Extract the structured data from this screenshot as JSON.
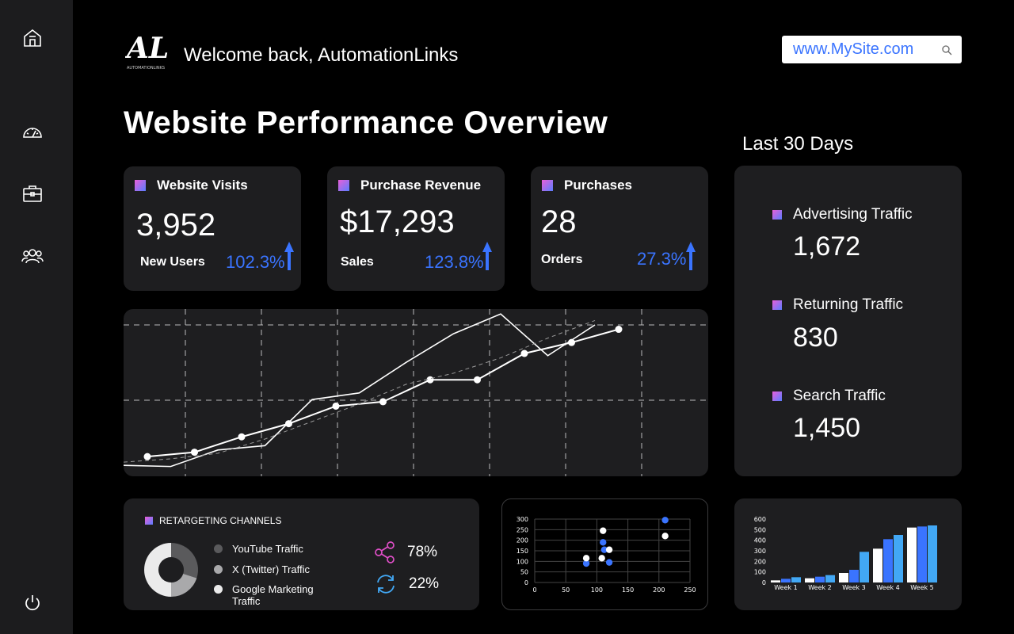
{
  "header": {
    "logo_text": "AL",
    "logo_subtext": "AUTOMATIONLINKS",
    "welcome": "Welcome back, AutomationLinks",
    "search_value": "www.MySite.com"
  },
  "page_title": "Website Performance Overview",
  "period_label": "Last 30 Days",
  "sidebar": {
    "items": [
      {
        "icon": "home-icon"
      },
      {
        "icon": "speedometer-icon"
      },
      {
        "icon": "briefcase-icon"
      },
      {
        "icon": "users-icon"
      }
    ],
    "footer_icon": "power-icon"
  },
  "kpis": [
    {
      "label": "Website Visits",
      "value": "3,952",
      "sub_label": "New Users",
      "change": "102.3%"
    },
    {
      "label": "Purchase Revenue",
      "value": "$17,293",
      "sub_label": "Sales",
      "change": "123.8%"
    },
    {
      "label": "Purchases",
      "value": "28",
      "sub_label": "Orders",
      "change": "27.3%"
    }
  ],
  "traffic": [
    {
      "label": "Advertising Traffic",
      "value": "1,672"
    },
    {
      "label": "Returning Traffic",
      "value": "830"
    },
    {
      "label": "Search Traffic",
      "value": "1,450"
    }
  ],
  "retargeting": {
    "title": "RETARGETING CHANNELS",
    "legend": [
      {
        "label": "YouTube Traffic",
        "color": "#5a5a5c"
      },
      {
        "label": "X (Twitter) Traffic",
        "color": "#a9a9ab"
      },
      {
        "label": "Google Marketing Traffic",
        "color": "#ebebeb"
      }
    ],
    "donut_shares": [
      0.3,
      0.2,
      0.5
    ],
    "stats": [
      {
        "icon": "share-icon",
        "value": "78%"
      },
      {
        "icon": "refresh-icon",
        "value": "22%"
      }
    ]
  },
  "chart_data": [
    {
      "type": "line",
      "series": [
        {
          "values": [
            1.0,
            1.4,
            2.8,
            4.0,
            5.6,
            6.0,
            8.0,
            8.0,
            10.4,
            11.4,
            12.6
          ]
        },
        {
          "values": [
            0.2,
            0.1,
            1.6,
            2.0,
            6.2,
            6.8,
            9.6,
            12.2,
            14.0,
            10.2,
            13.0
          ]
        },
        {
          "values": [
            0.5,
            0.8,
            1.3,
            2.6,
            4.2,
            5.8,
            7.6,
            8.6,
            10.0,
            11.8,
            13.4
          ]
        }
      ],
      "ylim": [
        0,
        13
      ]
    },
    {
      "type": "scatter",
      "xlim": [
        0,
        250
      ],
      "ylim": [
        0,
        300
      ],
      "x_ticks": [
        "0",
        "50",
        "100",
        "150",
        "200",
        "250"
      ],
      "y_ticks": [
        "0",
        "50",
        "100",
        "150",
        "200",
        "250",
        "300"
      ],
      "series": [
        {
          "color": "#3a74ff",
          "points": [
            [
              83,
              90
            ],
            [
              110,
              190
            ],
            [
              112,
              155
            ],
            [
              120,
              95
            ],
            [
              210,
              295
            ]
          ]
        },
        {
          "color": "#ffffff",
          "points": [
            [
              83,
              115
            ],
            [
              110,
              245
            ],
            [
              120,
              155
            ],
            [
              108,
              115
            ],
            [
              210,
              220
            ]
          ]
        }
      ]
    },
    {
      "type": "bar",
      "categories": [
        "Week 1",
        "Week 2",
        "Week 3",
        "Week 4",
        "Week 5"
      ],
      "ylim": [
        0,
        600
      ],
      "y_ticks": [
        "0",
        "100",
        "200",
        "300",
        "400",
        "500",
        "600"
      ],
      "series": [
        {
          "color": "#ffffff",
          "values": [
            20,
            40,
            90,
            320,
            520
          ]
        },
        {
          "color": "#3a74ff",
          "values": [
            35,
            55,
            120,
            410,
            530
          ]
        },
        {
          "color": "#42a8f5",
          "values": [
            50,
            70,
            290,
            450,
            540
          ]
        }
      ]
    }
  ]
}
